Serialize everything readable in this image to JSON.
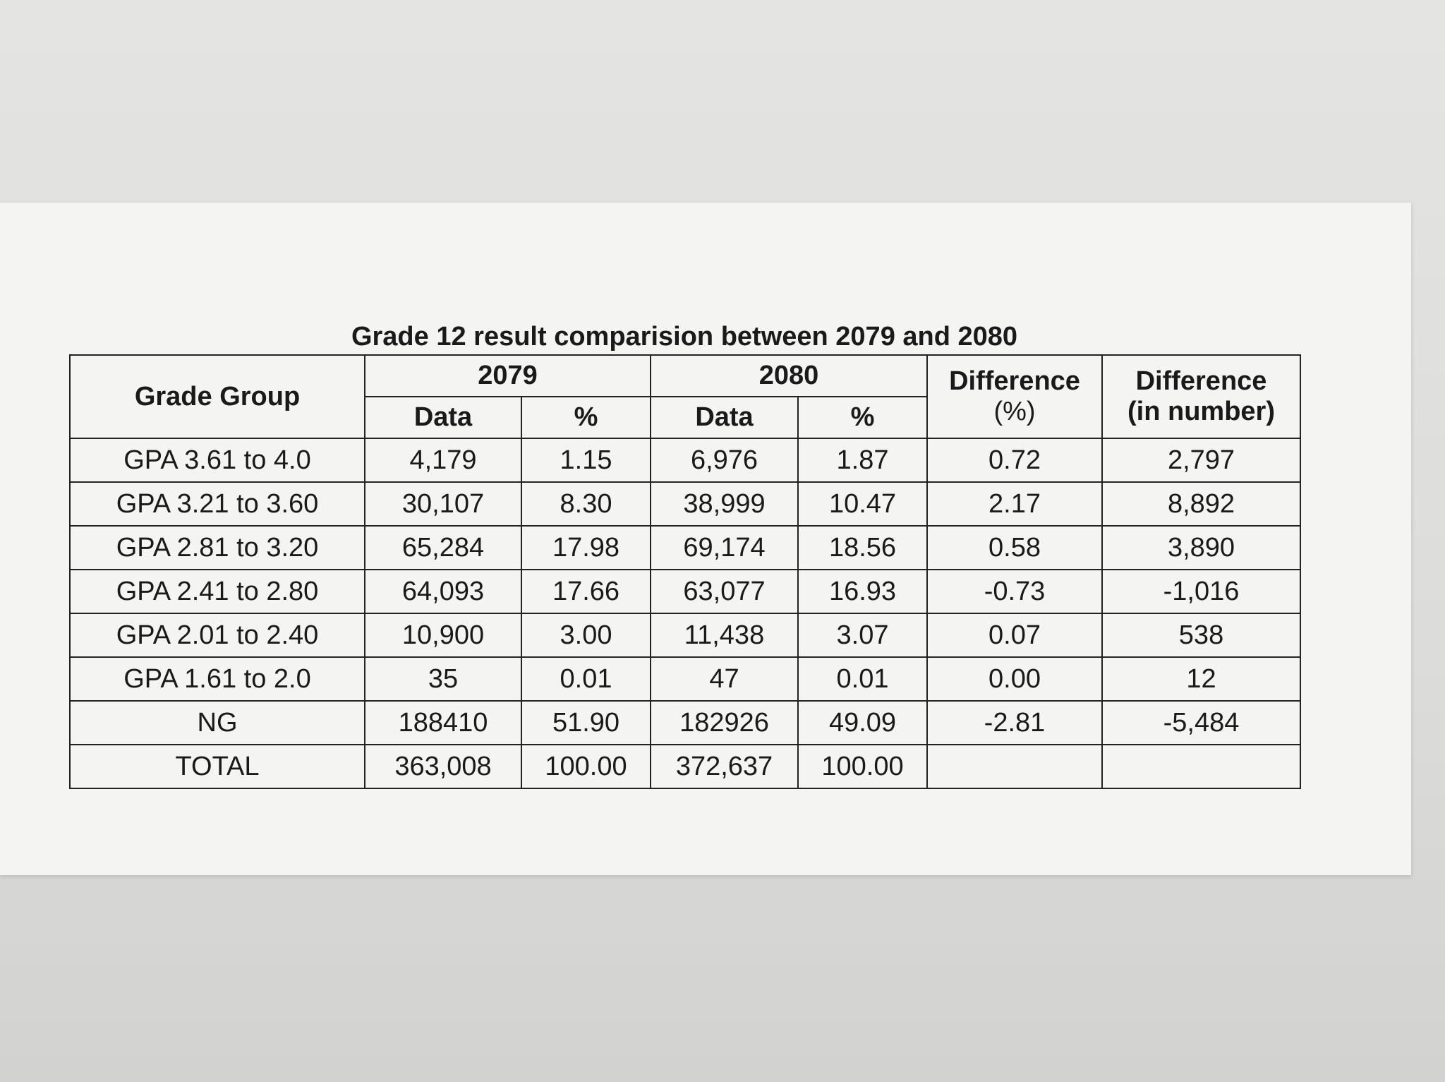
{
  "title": "Grade 12 result comparision between 2079 and 2080",
  "table": {
    "header": {
      "group": "Grade Group",
      "years": [
        "2079",
        "2080"
      ],
      "sub": [
        "Data",
        "%",
        "Data",
        "%"
      ],
      "diff_percent": [
        "Difference",
        "(%)"
      ],
      "diff_number": [
        "Difference",
        "(in number)"
      ]
    },
    "rows": [
      [
        "GPA 3.61 to 4.0",
        "4,179",
        "1.15",
        "6,976",
        "1.87",
        "0.72",
        "2,797"
      ],
      [
        "GPA 3.21 to 3.60",
        "30,107",
        "8.30",
        "38,999",
        "10.47",
        "2.17",
        "8,892"
      ],
      [
        "GPA 2.81 to 3.20",
        "65,284",
        "17.98",
        "69,174",
        "18.56",
        "0.58",
        "3,890"
      ],
      [
        "GPA 2.41 to 2.80",
        "64,093",
        "17.66",
        "63,077",
        "16.93",
        "-0.73",
        "-1,016"
      ],
      [
        "GPA 2.01 to 2.40",
        "10,900",
        "3.00",
        "11,438",
        "3.07",
        "0.07",
        "538"
      ],
      [
        "GPA 1.61 to 2.0",
        "35",
        "0.01",
        "47",
        "0.01",
        "0.00",
        "12"
      ],
      [
        "NG",
        "188410",
        "51.90",
        "182926",
        "49.09",
        "-2.81",
        "-5,484"
      ],
      [
        "TOTAL",
        "363,008",
        "100.00",
        "372,637",
        "100.00"
      ]
    ]
  }
}
